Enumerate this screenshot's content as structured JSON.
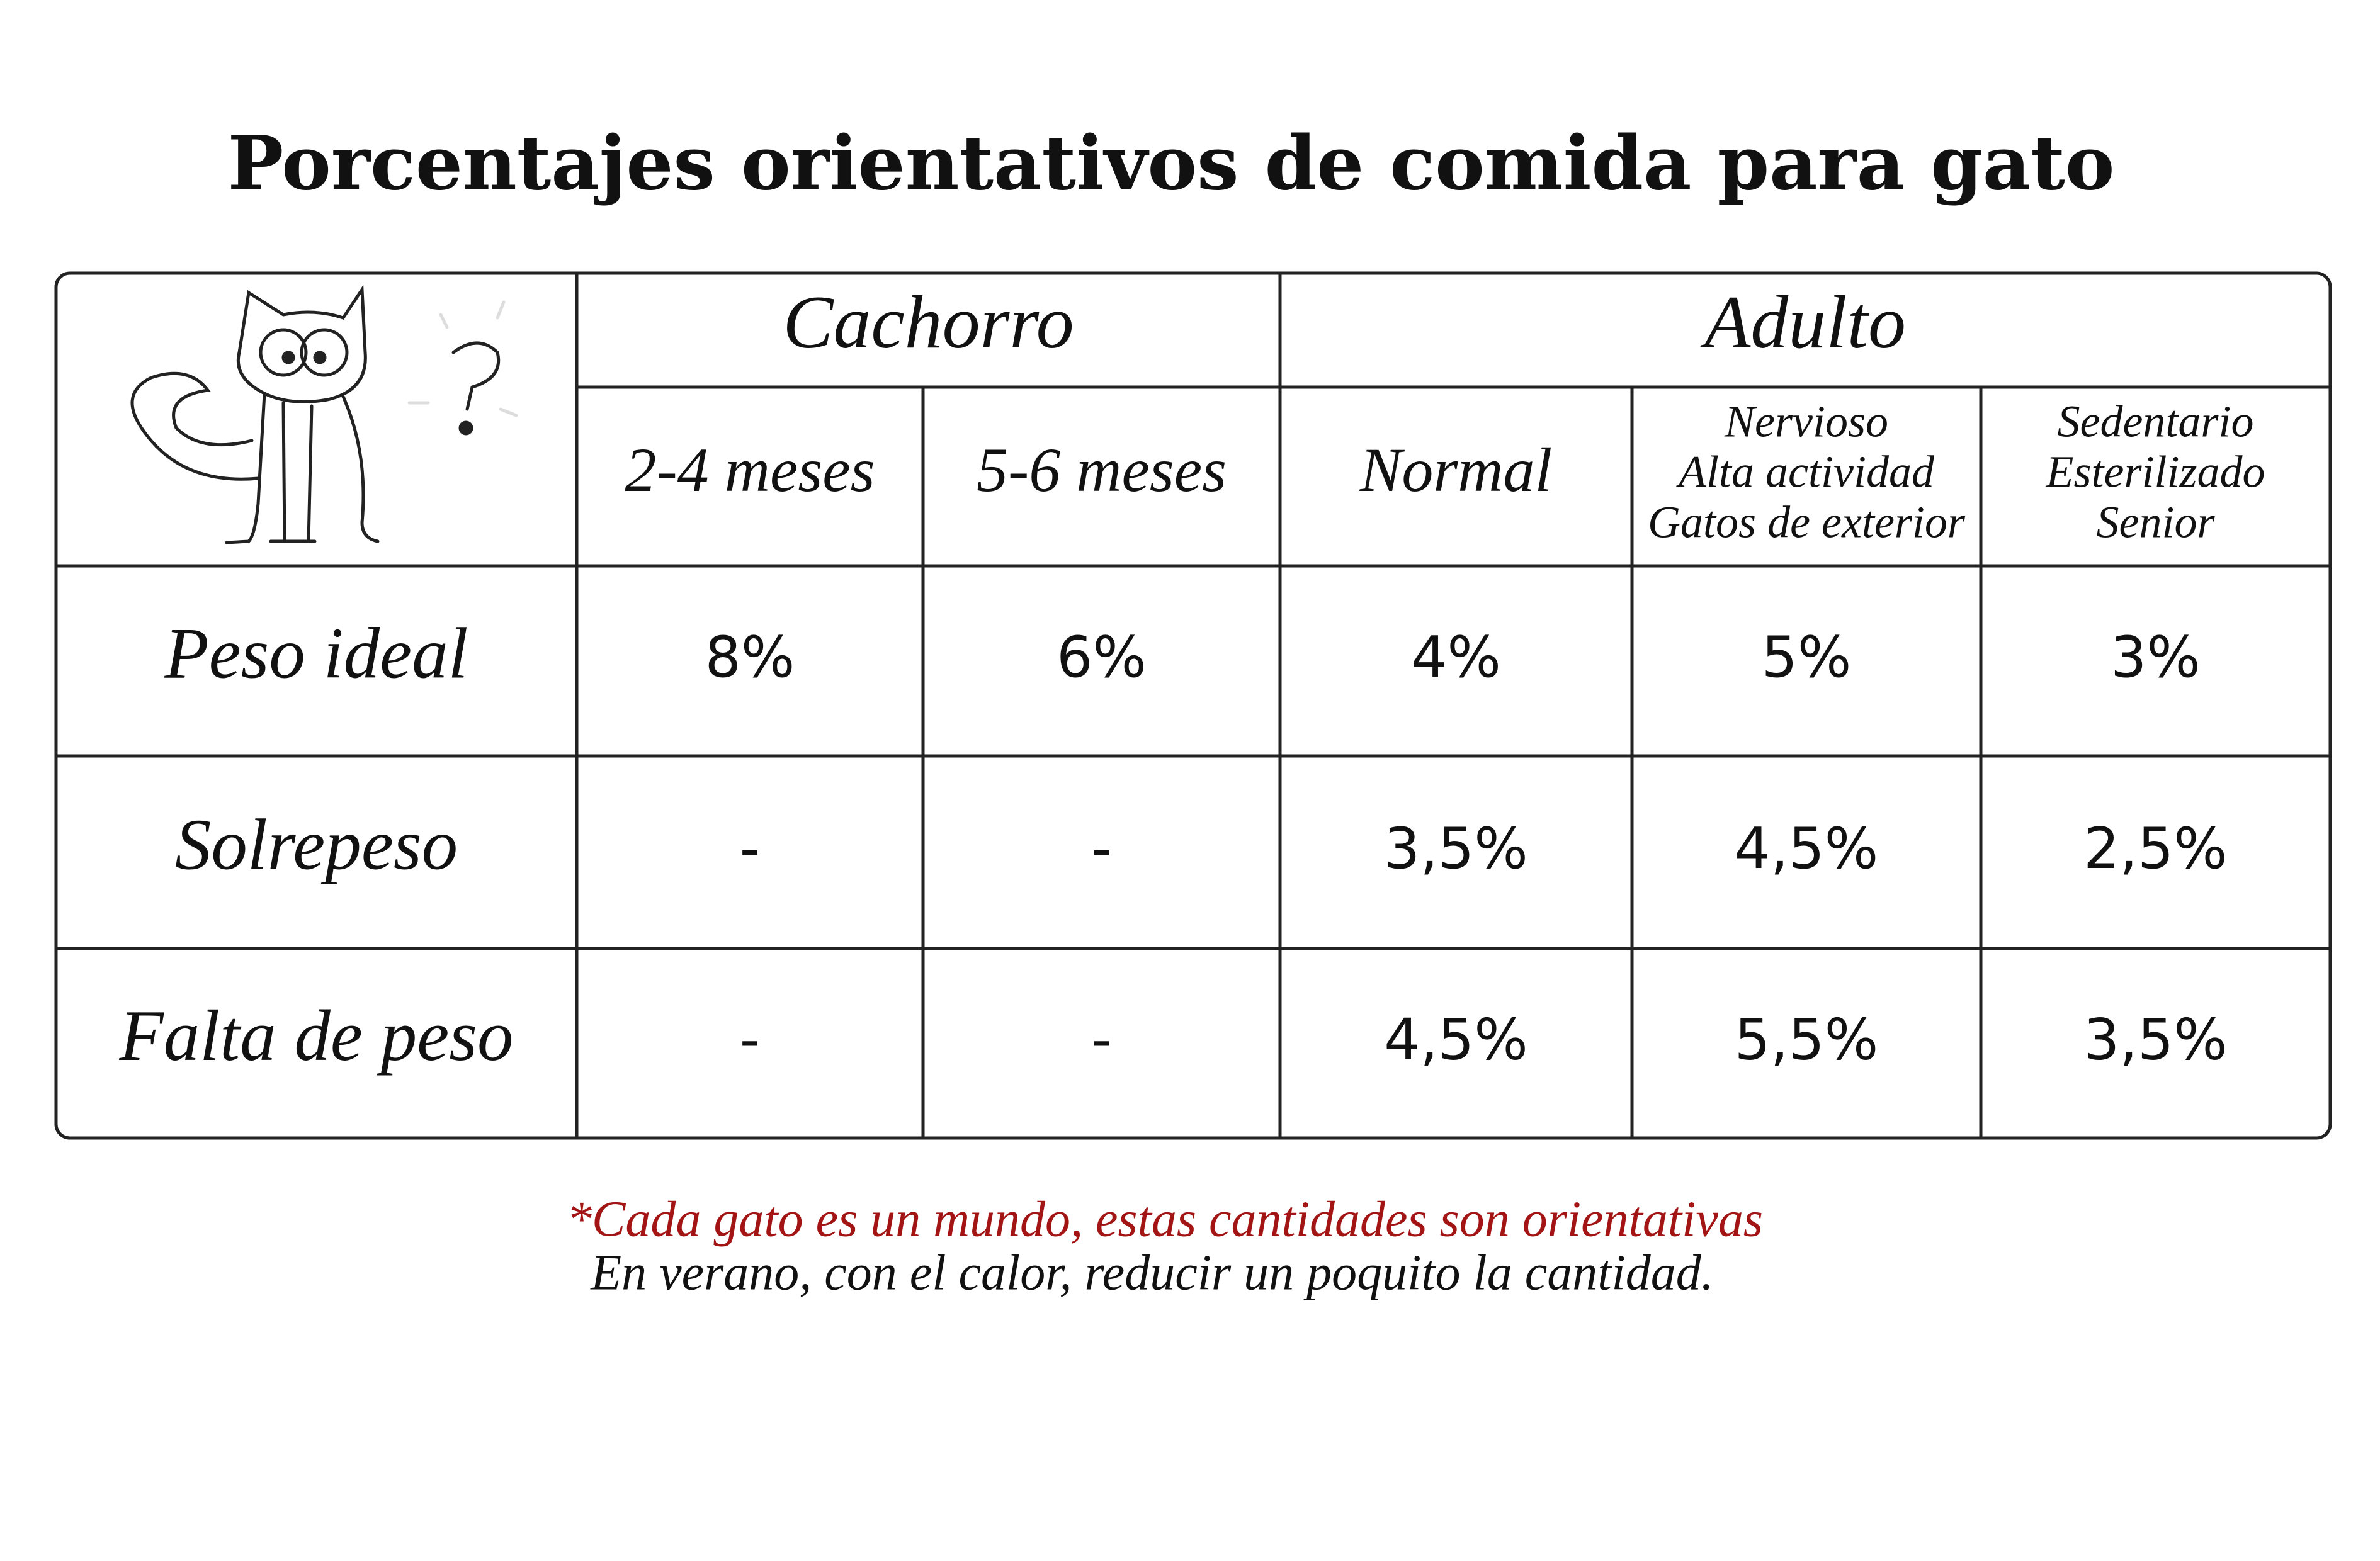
{
  "title": "Porcentajes orientativos de comida para gato",
  "table": {
    "groups": [
      "Cachorro",
      "Adulto"
    ],
    "columns": [
      [
        "2-4 meses"
      ],
      [
        "5-6 meses"
      ],
      [
        "Normal"
      ],
      [
        "Nervioso",
        "Alta actividad",
        "Gatos de exterior"
      ],
      [
        "Sedentario",
        "Esterilizado",
        "Senior"
      ]
    ],
    "rows": [
      {
        "label": "Peso ideal",
        "cells": [
          "8%",
          "6%",
          "4%",
          "5%",
          "3%"
        ]
      },
      {
        "label": "Solrepeso",
        "cells": [
          "-",
          "-",
          "3,5%",
          "4,5%",
          "2,5%"
        ]
      },
      {
        "label": "Falta de peso",
        "cells": [
          "-",
          "-",
          "4,5%",
          "5,5%",
          "3,5%"
        ]
      }
    ]
  },
  "notes": [
    "*Cada gato es un mundo, estas cantidades son orientativas",
    "En verano, con el calor, reducir un poquito la cantidad."
  ]
}
